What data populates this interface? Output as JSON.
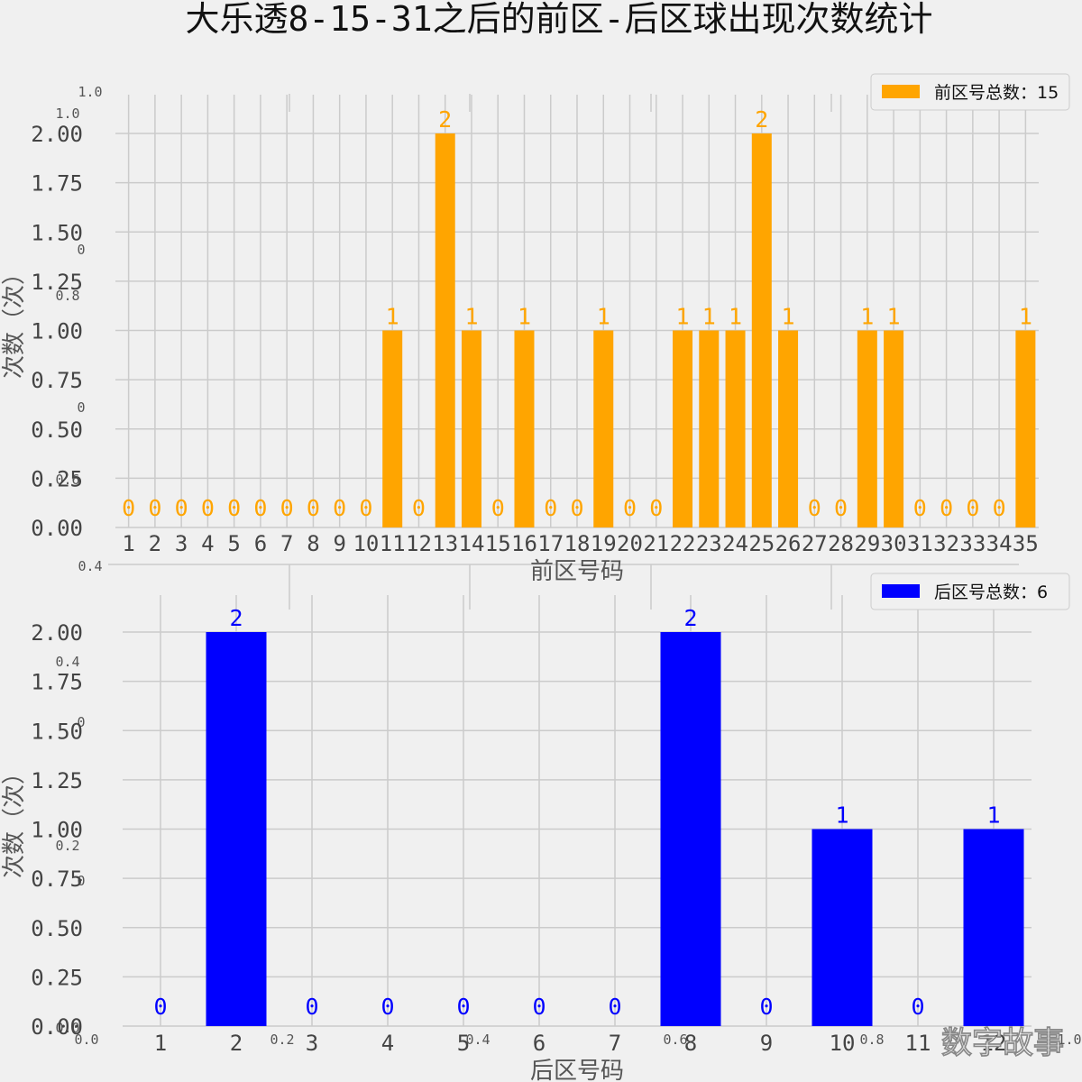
{
  "title": "大乐透8-15-31之后的前区-后区球出现次数统计",
  "watermark": "数字故事",
  "ghost_axis_ticks": {
    "left": [
      "1.0",
      "1.0",
      "0",
      "0.8",
      "0",
      "0.6",
      "0.4",
      "0.4",
      "0",
      "0.2",
      "0",
      "0.0"
    ],
    "bottom": [
      "0.0",
      "0.2",
      "0.4",
      "0.6",
      "0.8",
      "1.0"
    ]
  },
  "chart_data": [
    {
      "type": "bar",
      "xlabel": "前区号码",
      "ylabel": "次数（次）",
      "legend_label": "前区号总数：15",
      "legend_position": "top-right",
      "color": "#ffa500",
      "grid": true,
      "ylim": [
        0,
        2
      ],
      "yticks": [
        "0.00",
        "0.25",
        "0.50",
        "0.75",
        "1.00",
        "1.25",
        "1.50",
        "1.75",
        "2.00"
      ],
      "categories": [
        "1",
        "2",
        "3",
        "4",
        "5",
        "6",
        "7",
        "8",
        "9",
        "10",
        "11",
        "12",
        "13",
        "14",
        "15",
        "16",
        "17",
        "18",
        "19",
        "20",
        "21",
        "22",
        "23",
        "24",
        "25",
        "26",
        "27",
        "28",
        "29",
        "30",
        "31",
        "32",
        "33",
        "34",
        "35"
      ],
      "values": [
        0,
        0,
        0,
        0,
        0,
        0,
        0,
        0,
        0,
        0,
        1,
        0,
        2,
        1,
        0,
        1,
        0,
        0,
        1,
        0,
        0,
        1,
        1,
        1,
        2,
        1,
        0,
        0,
        1,
        1,
        0,
        0,
        0,
        0,
        1
      ]
    },
    {
      "type": "bar",
      "xlabel": "后区号码",
      "ylabel": "次数（次）",
      "legend_label": "后区号总数：6",
      "legend_position": "top-right",
      "color": "#0000ff",
      "grid": true,
      "ylim": [
        0,
        2
      ],
      "yticks": [
        "0.00",
        "0.25",
        "0.50",
        "0.75",
        "1.00",
        "1.25",
        "1.50",
        "1.75",
        "2.00"
      ],
      "categories": [
        "1",
        "2",
        "3",
        "4",
        "5",
        "6",
        "7",
        "8",
        "9",
        "10",
        "11",
        "12"
      ],
      "values": [
        0,
        2,
        0,
        0,
        0,
        0,
        0,
        2,
        0,
        1,
        0,
        1
      ]
    }
  ]
}
